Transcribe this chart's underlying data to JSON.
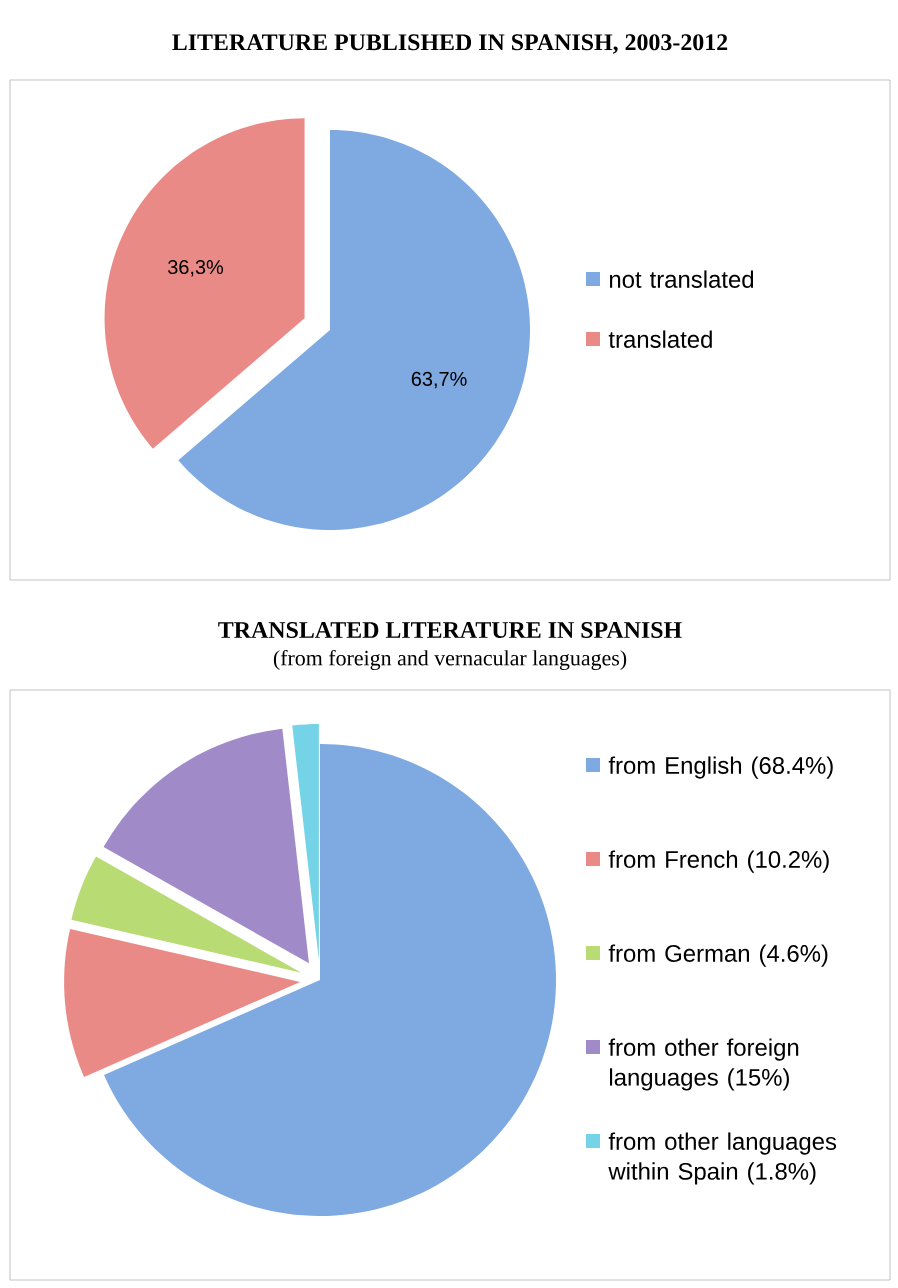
{
  "chart_data": [
    {
      "type": "pie",
      "title": "LITERATURE PUBLISHED IN SPANISH, 2003-2012",
      "categories": [
        "not translated",
        "translated"
      ],
      "values": [
        63.7,
        36.3
      ],
      "colors": [
        "#7ea9e1",
        "#ea8a87"
      ],
      "value_labels": [
        "63,7%",
        "36,3%"
      ],
      "legend": "right"
    },
    {
      "type": "pie",
      "title": "TRANSLATED LITERATURE IN SPANISH",
      "subtitle": "(from foreign and vernacular languages)",
      "categories": [
        "from English (68.4%)",
        "from French (10.2%)",
        "from German (4.6%)",
        "from other foreign languages (15%)",
        "from other languages within Spain (1.8%)"
      ],
      "values": [
        68.4,
        10.2,
        4.6,
        15,
        1.8
      ],
      "colors": [
        "#7ea9e1",
        "#ea8a87",
        "#b9db74",
        "#a08bc8",
        "#74d3e6"
      ],
      "legend": "right"
    }
  ]
}
